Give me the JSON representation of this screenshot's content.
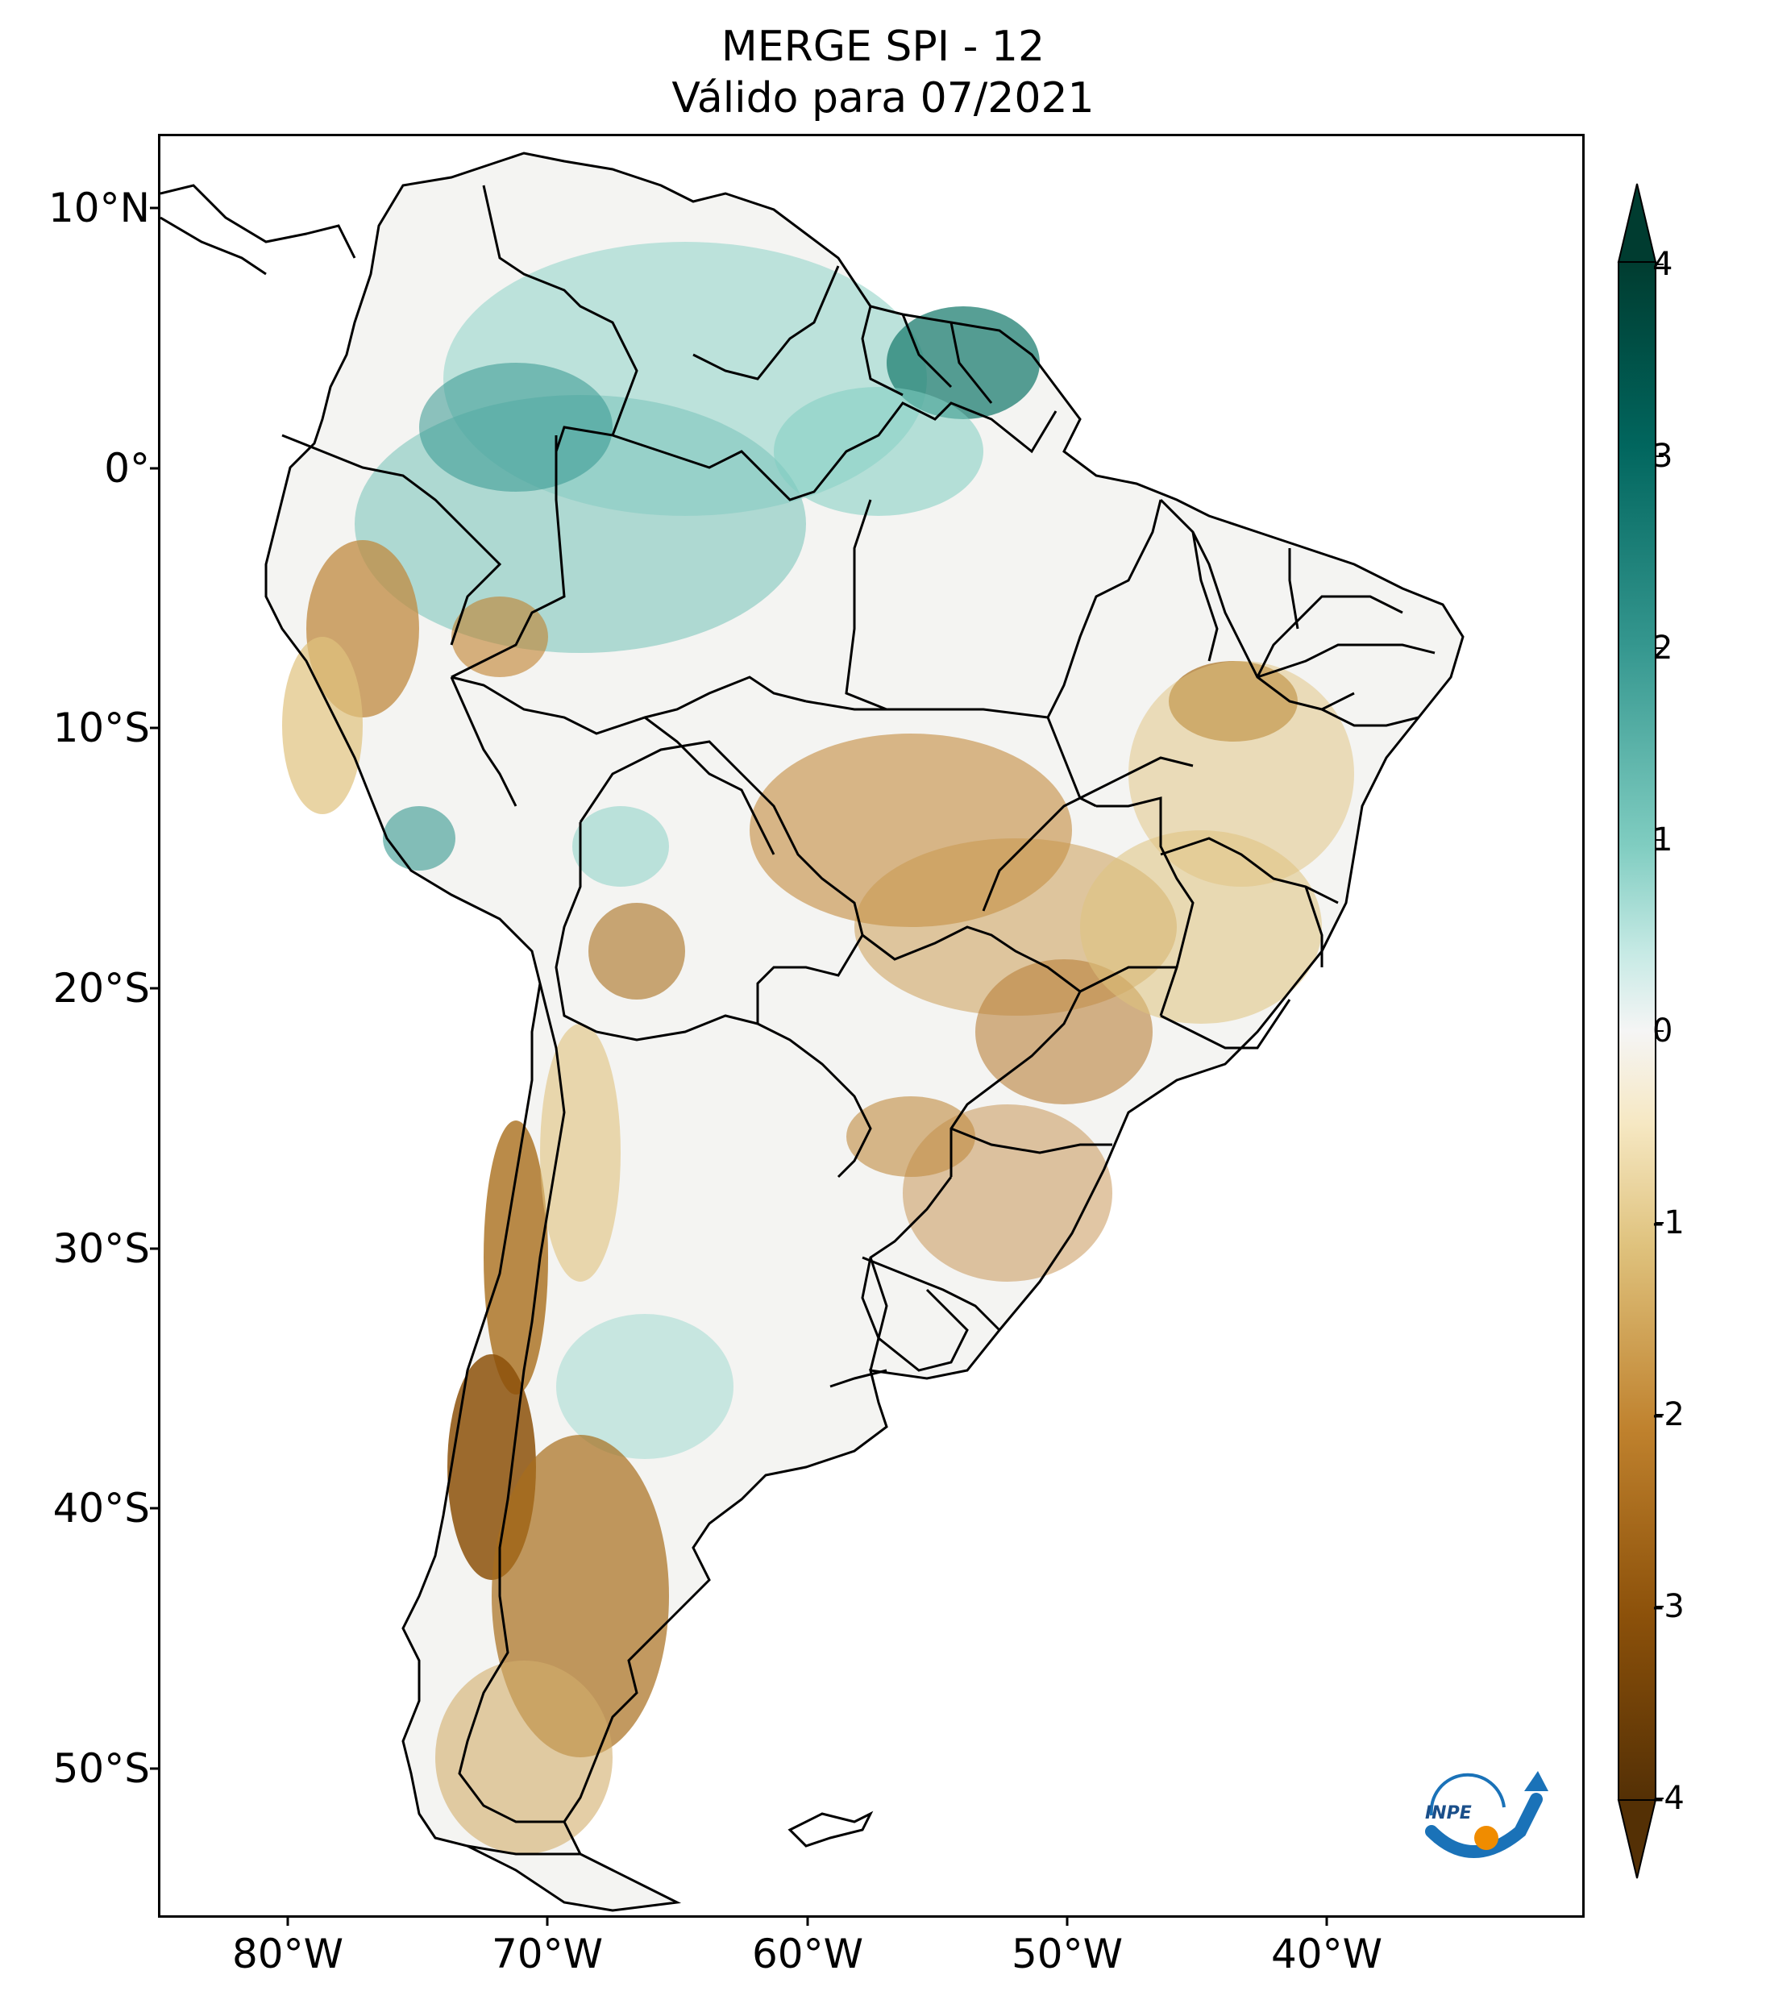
{
  "title": {
    "line1": "MERGE   SPI - 12",
    "line2": "Válido para 07/2021"
  },
  "map": {
    "type": "choropleth raster",
    "region": "South America",
    "variable": "SPI - 12",
    "source": "MERGE",
    "lon_range": [
      -85,
      -30
    ],
    "lat_range": [
      -56,
      13
    ],
    "lat_labels": [
      "10°N",
      "0°",
      "10°S",
      "20°S",
      "30°S",
      "40°S",
      "50°S"
    ],
    "lon_labels": [
      "80°W",
      "70°W",
      "60°W",
      "50°W",
      "40°W"
    ]
  },
  "colorbar": {
    "ticks": [
      "4",
      "3",
      "2",
      "1",
      "0",
      "-1",
      "-2",
      "-3",
      "-4"
    ],
    "min": -4,
    "max": 4,
    "colors": {
      "wet_extreme": "#003c30",
      "wet": "#35978f",
      "neutral": "#f5f5f5",
      "dry": "#dfc27d",
      "dry_extreme": "#543005"
    }
  },
  "logo": {
    "text": "INPE"
  }
}
